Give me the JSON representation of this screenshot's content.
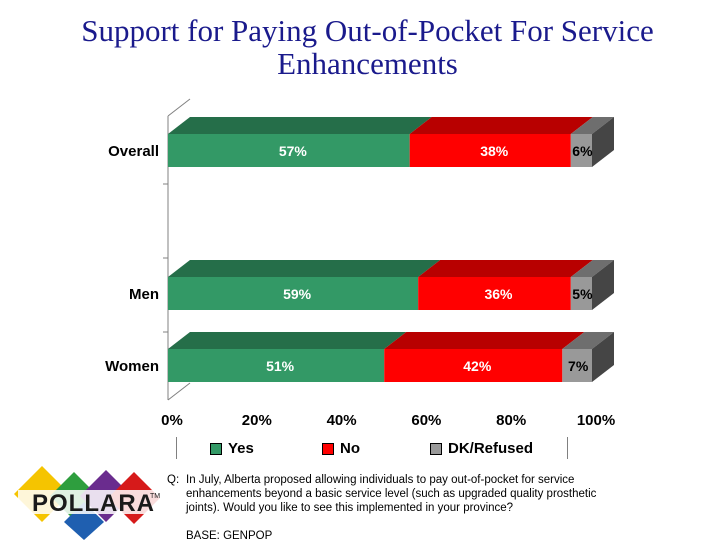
{
  "title": "Support for Paying Out-of-Pocket For Service Enhancements",
  "chart_data": {
    "type": "bar",
    "orientation": "horizontal",
    "stacked": true,
    "categories": [
      "Overall",
      "Men",
      "Women"
    ],
    "series": [
      {
        "name": "Yes",
        "values": [
          57,
          59,
          51
        ],
        "color": "#339966"
      },
      {
        "name": "No",
        "values": [
          38,
          36,
          42
        ],
        "color": "#ff0000"
      },
      {
        "name": "DK/Refused",
        "values": [
          6,
          5,
          7
        ],
        "color": "#999999"
      }
    ],
    "data_labels": [
      [
        "57%",
        "38%",
        "6%"
      ],
      [
        "59%",
        "36%",
        "5%"
      ],
      [
        "51%",
        "42%",
        "7%"
      ]
    ],
    "xlim": [
      0,
      100
    ],
    "x_ticks": [
      "0%",
      "20%",
      "40%",
      "60%",
      "80%",
      "100%"
    ],
    "legend": "bottom"
  },
  "question": {
    "prefix": "Q:",
    "text": "In July, Alberta proposed allowing individuals to pay out-of-pocket for service enhancements beyond a basic service level (such as upgraded quality prosthetic joints).  Would you like to see this implemented in your province?",
    "base": "BASE: GENPOP"
  },
  "logo": {
    "text": "POLLARA",
    "trademark": "TM"
  }
}
